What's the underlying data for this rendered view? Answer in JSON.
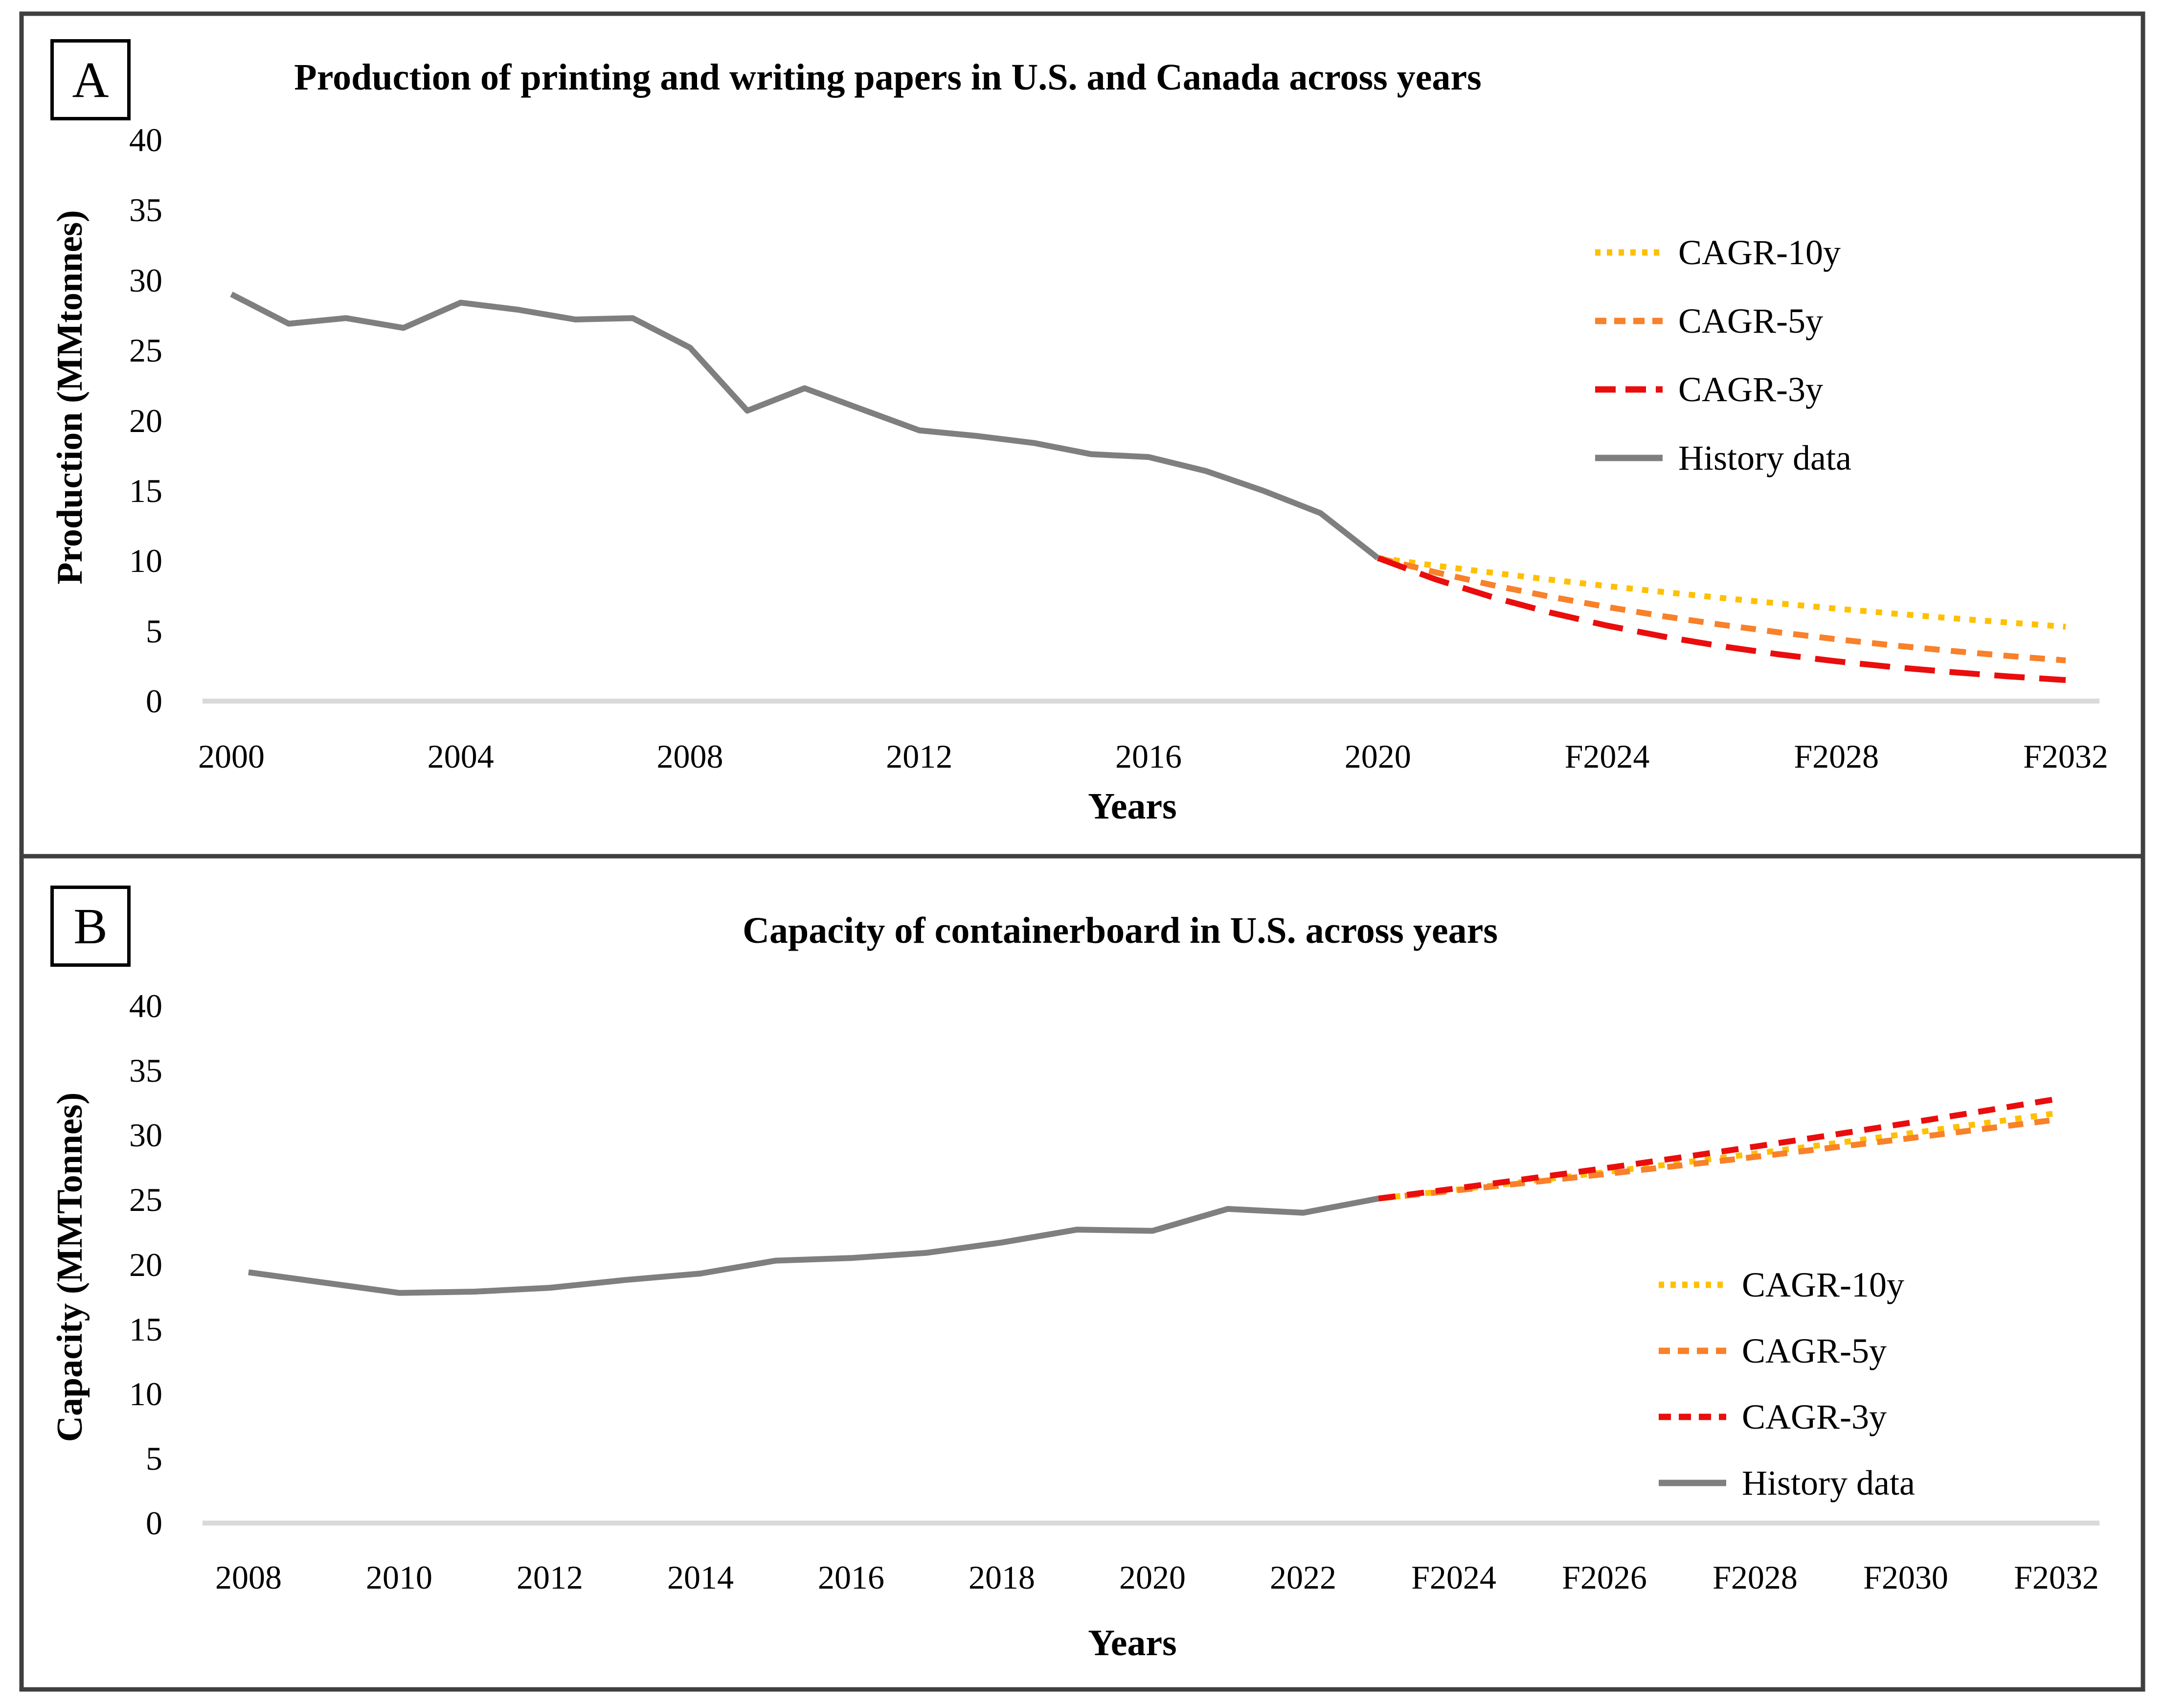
{
  "figure": {
    "panel_a_label": "A",
    "panel_b_label": "B"
  },
  "colors": {
    "gold": "#FFC000",
    "orange": "#F8812A",
    "red": "#EA0D0D",
    "history_gray": "#7F7F7F",
    "gridline": "#D9D9D9",
    "frame": "#3F3F3F",
    "text": "#000000"
  },
  "chart_data": [
    {
      "type": "line",
      "panel": "A",
      "title": "Production of printing and writing papers in U.S. and Canada across years",
      "xlabel": "Years",
      "ylabel": "Production (MMtonnes)",
      "ylim": [
        0,
        40
      ],
      "yticks": [
        40,
        35,
        30,
        25,
        20,
        15,
        10,
        5,
        0
      ],
      "xticks": [
        "2000",
        "2004",
        "2008",
        "2012",
        "2016",
        "2020",
        "F2024",
        "F2028",
        "F2032"
      ],
      "grid": "baseline-only",
      "legend_position": "inside-right-top",
      "series": [
        {
          "name": "CAGR-10y",
          "color": "#FFC000",
          "line_style": "dotted",
          "x": [
            2020,
            2021,
            2022,
            2023,
            2024,
            2025,
            2026,
            2027,
            2028,
            2029,
            2030,
            2031,
            2032
          ],
          "values": [
            10.2,
            9.66,
            9.15,
            8.66,
            8.2,
            7.77,
            7.35,
            6.96,
            6.59,
            6.24,
            5.91,
            5.6,
            5.3
          ]
        },
        {
          "name": "CAGR-5y",
          "color": "#F8812A",
          "line_style": "dashed",
          "x": [
            2020,
            2021,
            2022,
            2023,
            2024,
            2025,
            2026,
            2027,
            2028,
            2029,
            2030,
            2031,
            2032
          ],
          "values": [
            10.2,
            9.19,
            8.27,
            7.45,
            6.71,
            6.04,
            5.44,
            4.9,
            4.41,
            3.97,
            3.58,
            3.22,
            2.9
          ]
        },
        {
          "name": "CAGR-3y",
          "color": "#EA0D0D",
          "line_style": "longdash",
          "x": [
            2020,
            2021,
            2022,
            2023,
            2024,
            2025,
            2026,
            2027,
            2028,
            2029,
            2030,
            2031,
            2032
          ],
          "values": [
            10.2,
            8.69,
            7.41,
            6.32,
            5.38,
            4.59,
            3.91,
            3.33,
            2.84,
            2.42,
            2.07,
            1.76,
            1.5
          ]
        },
        {
          "name": "History data",
          "color": "#7F7F7F",
          "line_style": "solid",
          "x": [
            2000,
            2001,
            2002,
            2003,
            2004,
            2005,
            2006,
            2007,
            2008,
            2009,
            2010,
            2011,
            2012,
            2013,
            2014,
            2015,
            2016,
            2017,
            2018,
            2019,
            2020
          ],
          "values": [
            29.0,
            26.9,
            27.3,
            26.6,
            28.4,
            27.9,
            27.2,
            27.3,
            25.2,
            20.7,
            22.3,
            20.8,
            19.3,
            18.9,
            18.4,
            17.6,
            17.4,
            16.4,
            15.0,
            13.4,
            10.2
          ]
        }
      ]
    },
    {
      "type": "line",
      "panel": "B",
      "title": "Capacity of containerboard in U.S. across years",
      "xlabel": "Years",
      "ylabel": "Capacity (MMTonnes)",
      "ylim": [
        0,
        40
      ],
      "yticks": [
        40,
        35,
        30,
        25,
        20,
        15,
        10,
        5,
        0
      ],
      "xticks": [
        "2008",
        "2010",
        "2012",
        "2014",
        "2016",
        "2018",
        "2020",
        "2022",
        "F2024",
        "F2026",
        "F2028",
        "F2030",
        "F2032"
      ],
      "grid": "baseline-only",
      "legend_position": "inside-right-bottom",
      "series": [
        {
          "name": "CAGR-10y",
          "color": "#FFC000",
          "line_style": "dotted",
          "x": [
            2023,
            2024,
            2025,
            2026,
            2027,
            2028,
            2029,
            2030,
            2031,
            2032
          ],
          "values": [
            25.1,
            25.76,
            26.44,
            27.13,
            27.85,
            28.58,
            29.33,
            30.1,
            30.89,
            31.7
          ]
        },
        {
          "name": "CAGR-5y",
          "color": "#F8812A",
          "line_style": "dashed",
          "x": [
            2023,
            2024,
            2025,
            2026,
            2027,
            2028,
            2029,
            2030,
            2031,
            2032
          ],
          "values": [
            25.1,
            25.71,
            26.34,
            26.99,
            27.65,
            28.32,
            29.02,
            29.73,
            30.46,
            31.2
          ]
        },
        {
          "name": "CAGR-3y",
          "color": "#EA0D0D",
          "line_style": "shortdash",
          "x": [
            2023,
            2024,
            2025,
            2026,
            2027,
            2028,
            2029,
            2030,
            2031,
            2032
          ],
          "values": [
            25.1,
            25.86,
            26.64,
            27.44,
            28.27,
            29.12,
            30.0,
            30.91,
            31.84,
            32.8
          ]
        },
        {
          "name": "History data",
          "color": "#7F7F7F",
          "line_style": "solid",
          "x": [
            2008,
            2009,
            2010,
            2011,
            2012,
            2013,
            2014,
            2015,
            2016,
            2017,
            2018,
            2019,
            2020,
            2021,
            2022,
            2023
          ],
          "values": [
            19.4,
            18.6,
            17.8,
            17.9,
            18.2,
            18.8,
            19.3,
            20.3,
            20.5,
            20.9,
            21.7,
            22.7,
            22.6,
            24.3,
            24.0,
            25.1
          ]
        }
      ]
    }
  ]
}
